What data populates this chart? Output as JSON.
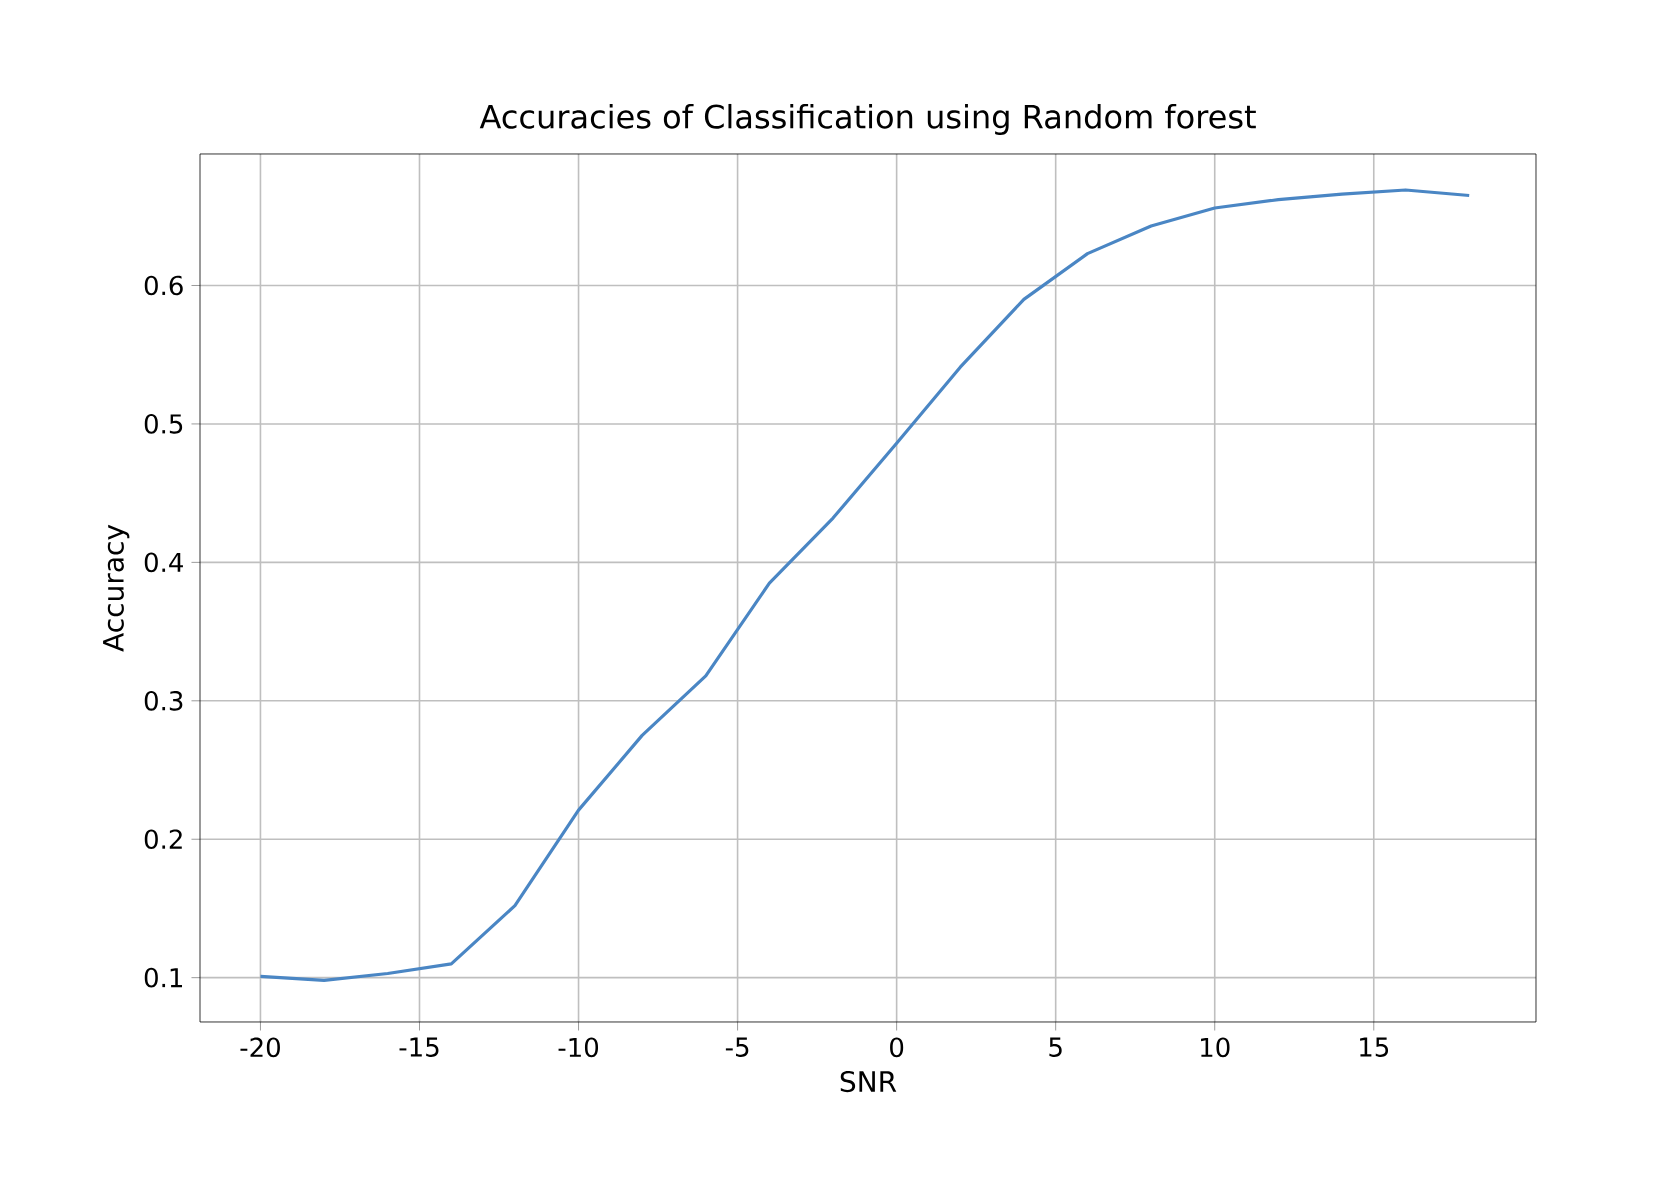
{
  "chart_data": {
    "type": "line",
    "title": "Accuracies of Classification using Random forest",
    "xlabel": "SNR",
    "ylabel": "Accuracy",
    "x": [
      -20,
      -18,
      -16,
      -14,
      -12,
      -10,
      -8,
      -6,
      -4,
      -2,
      0,
      2,
      4,
      6,
      8,
      10,
      12,
      14,
      16,
      18
    ],
    "series": [
      {
        "color": "#4a86c4",
        "values": [
          0.101,
          0.098,
          0.103,
          0.11,
          0.152,
          0.221,
          0.275,
          0.318,
          0.385,
          0.432,
          0.486,
          0.541,
          0.59,
          0.623,
          0.643,
          0.656,
          0.662,
          0.666,
          0.669,
          0.665
        ]
      }
    ],
    "xlim": [
      -21.9,
      20.1
    ],
    "ylim": [
      0.068,
      0.695
    ],
    "xticks": [
      -20,
      -15,
      -10,
      -5,
      0,
      5,
      10,
      15
    ],
    "yticks": [
      0.1,
      0.2,
      0.3,
      0.4,
      0.5,
      0.6
    ],
    "grid": true,
    "line_style": "solid"
  }
}
